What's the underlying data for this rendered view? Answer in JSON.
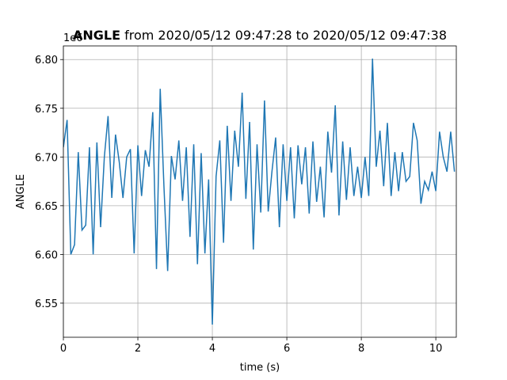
{
  "chart_data": {
    "type": "line",
    "title": "ANGLE",
    "subtitle": "from 2020/05/12 09:47:28 to 2020/05/12 09:47:38",
    "x_label": "time (s)",
    "y_label": "ANGLE",
    "y_offset_text": "1e6",
    "grid": true,
    "x": [
      0,
      0.1,
      0.2,
      0.3,
      0.4,
      0.5,
      0.6,
      0.7,
      0.8,
      0.9,
      1,
      1.1,
      1.2,
      1.3,
      1.4,
      1.5,
      1.6,
      1.7,
      1.8,
      1.9,
      2,
      2.1,
      2.2,
      2.3,
      2.4,
      2.5,
      2.6,
      2.7,
      2.8,
      2.9,
      3,
      3.1,
      3.2,
      3.3,
      3.4,
      3.5,
      3.6,
      3.7,
      3.8,
      3.9,
      4,
      4.1,
      4.2,
      4.3,
      4.4,
      4.5,
      4.6,
      4.7,
      4.8,
      4.9,
      5,
      5.1,
      5.2,
      5.3,
      5.4,
      5.5,
      5.6,
      5.7,
      5.8,
      5.9,
      6,
      6.1,
      6.2,
      6.3,
      6.4,
      6.5,
      6.6,
      6.7,
      6.8,
      6.9,
      7,
      7.1,
      7.2,
      7.3,
      7.4,
      7.5,
      7.6,
      7.7,
      7.8,
      7.9,
      8,
      8.1,
      8.2,
      8.3,
      8.4,
      8.5,
      8.6,
      8.7,
      8.8,
      8.9,
      9,
      9.1,
      9.2,
      9.3,
      9.4,
      9.5,
      9.6,
      9.7,
      9.8,
      9.9,
      10,
      10.1,
      10.2,
      10.3,
      10.4,
      10.5
    ],
    "series": [
      {
        "name": "ANGLE",
        "color": "#1f77b4",
        "values": [
          6.71,
          6.738,
          6.6,
          6.61,
          6.705,
          6.625,
          6.63,
          6.71,
          6.6,
          6.715,
          6.628,
          6.7,
          6.742,
          6.658,
          6.723,
          6.695,
          6.658,
          6.7,
          6.708,
          6.601,
          6.712,
          6.66,
          6.707,
          6.69,
          6.746,
          6.585,
          6.77,
          6.67,
          6.583,
          6.701,
          6.677,
          6.717,
          6.655,
          6.71,
          6.618,
          6.713,
          6.59,
          6.704,
          6.601,
          6.677,
          6.528,
          6.68,
          6.717,
          6.612,
          6.732,
          6.655,
          6.727,
          6.69,
          6.766,
          6.657,
          6.736,
          6.605,
          6.713,
          6.643,
          6.758,
          6.644,
          6.685,
          6.72,
          6.628,
          6.713,
          6.655,
          6.71,
          6.637,
          6.712,
          6.672,
          6.71,
          6.642,
          6.716,
          6.654,
          6.69,
          6.638,
          6.726,
          6.684,
          6.753,
          6.64,
          6.716,
          6.656,
          6.71,
          6.66,
          6.69,
          6.658,
          6.7,
          6.66,
          6.801,
          6.69,
          6.727,
          6.67,
          6.735,
          6.66,
          6.705,
          6.665,
          6.705,
          6.675,
          6.68,
          6.735,
          6.717,
          6.652,
          6.675,
          6.666,
          6.685,
          6.665,
          6.726,
          6.7,
          6.685,
          6.726,
          6.685
        ]
      }
    ],
    "xlim": [
      0,
      10.55
    ],
    "xticks": [
      0,
      2,
      4,
      6,
      8,
      10
    ],
    "ylim": [
      6.515,
      6.814
    ],
    "yticks": [
      6.55,
      {
        "value": 6.6,
        "label": "6.60"
      },
      6.65,
      {
        "value": 6.7,
        "label": "6.70"
      },
      6.75,
      {
        "value": 6.8,
        "label": "6.80"
      }
    ]
  }
}
